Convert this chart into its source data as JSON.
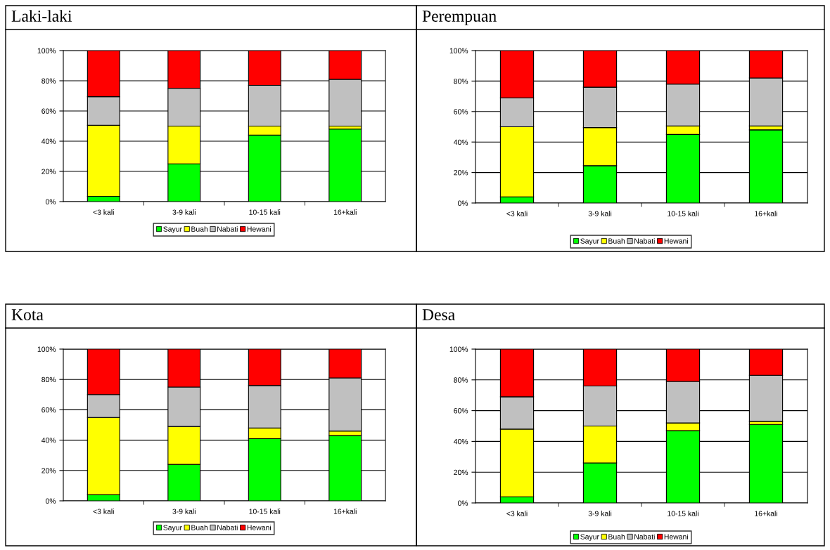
{
  "chart_data": [
    {
      "type": "bar",
      "title": "Laki-laki",
      "categories": [
        "<3 kali",
        "3-9 kali",
        "10-15 kali",
        "16+kali"
      ],
      "stacked": true,
      "ylim": [
        0,
        100
      ],
      "yticks": [
        {
          "value": 0,
          "label": "0%"
        },
        {
          "value": 20,
          "label": "20%"
        },
        {
          "value": 40,
          "label": "40%"
        },
        {
          "value": 60,
          "label": "60%"
        },
        {
          "value": 80,
          "label": "80%"
        },
        {
          "value": 100,
          "label": "100%"
        }
      ],
      "grid": "y",
      "legend": "bottom",
      "series": [
        {
          "name": "Sayur",
          "color": "#00ff00",
          "values": [
            3.5,
            25,
            44,
            48
          ]
        },
        {
          "name": "Buah",
          "color": "#ffff00",
          "values": [
            47,
            25,
            6,
            2
          ]
        },
        {
          "name": "Nabati",
          "color": "#c0c0c0",
          "values": [
            19,
            25,
            27,
            31
          ]
        },
        {
          "name": "Hewani",
          "color": "#ff0000",
          "values": [
            30.5,
            25,
            23,
            19
          ]
        }
      ]
    },
    {
      "type": "bar",
      "title": "Perempuan",
      "categories": [
        "<3 kali",
        "3-9 kali",
        "10-15 kali",
        "16+kali"
      ],
      "stacked": true,
      "ylim": [
        0,
        100
      ],
      "yticks": [
        {
          "value": 0,
          "label": "0%"
        },
        {
          "value": 20,
          "label": "20%"
        },
        {
          "value": 40,
          "label": "40%"
        },
        {
          "value": 60,
          "label": "60%"
        },
        {
          "value": 80,
          "label": "80%"
        },
        {
          "value": 100,
          "label": "100%"
        }
      ],
      "grid": "y",
      "legend": "bottom",
      "series": [
        {
          "name": "Sayur",
          "color": "#00ff00",
          "values": [
            4,
            24.5,
            45,
            48
          ]
        },
        {
          "name": "Buah",
          "color": "#ffff00",
          "values": [
            46,
            25,
            5.5,
            2.5
          ]
        },
        {
          "name": "Nabati",
          "color": "#c0c0c0",
          "values": [
            19,
            26.5,
            27.5,
            31.5
          ]
        },
        {
          "name": "Hewani",
          "color": "#ff0000",
          "values": [
            31,
            24,
            22,
            18
          ]
        }
      ]
    },
    {
      "type": "bar",
      "title": "Kota",
      "categories": [
        "<3 kali",
        "3-9 kali",
        "10-15 kali",
        "16+kali"
      ],
      "stacked": true,
      "ylim": [
        0,
        100
      ],
      "yticks": [
        {
          "value": 0,
          "label": "0%"
        },
        {
          "value": 20,
          "label": "20%"
        },
        {
          "value": 40,
          "label": "40%"
        },
        {
          "value": 60,
          "label": "60%"
        },
        {
          "value": 80,
          "label": "80%"
        },
        {
          "value": 100,
          "label": "100%"
        }
      ],
      "grid": "y",
      "legend": "bottom",
      "series": [
        {
          "name": "Sayur",
          "color": "#00ff00",
          "values": [
            4,
            24,
            41,
            43
          ]
        },
        {
          "name": "Buah",
          "color": "#ffff00",
          "values": [
            51,
            25,
            7,
            3
          ]
        },
        {
          "name": "Nabati",
          "color": "#c0c0c0",
          "values": [
            15,
            26,
            28,
            35
          ]
        },
        {
          "name": "Hewani",
          "color": "#ff0000",
          "values": [
            30,
            25,
            24,
            19
          ]
        }
      ]
    },
    {
      "type": "bar",
      "title": "Desa",
      "categories": [
        "<3 kali",
        "3-9 kali",
        "10-15 kali",
        "16+kali"
      ],
      "stacked": true,
      "ylim": [
        0,
        100
      ],
      "yticks": [
        {
          "value": 0,
          "label": "0%"
        },
        {
          "value": 20,
          "label": "20%"
        },
        {
          "value": 40,
          "label": "40%"
        },
        {
          "value": 60,
          "label": "60%"
        },
        {
          "value": 80,
          "label": "80%"
        },
        {
          "value": 100,
          "label": "100%"
        }
      ],
      "grid": "y",
      "legend": "bottom",
      "series": [
        {
          "name": "Sayur",
          "color": "#00ff00",
          "values": [
            4,
            26,
            47,
            51
          ]
        },
        {
          "name": "Buah",
          "color": "#ffff00",
          "values": [
            44,
            24,
            5,
            2
          ]
        },
        {
          "name": "Nabati",
          "color": "#c0c0c0",
          "values": [
            21,
            26,
            27,
            30
          ]
        },
        {
          "name": "Hewani",
          "color": "#ff0000",
          "values": [
            31,
            24,
            21,
            17
          ]
        }
      ]
    }
  ]
}
